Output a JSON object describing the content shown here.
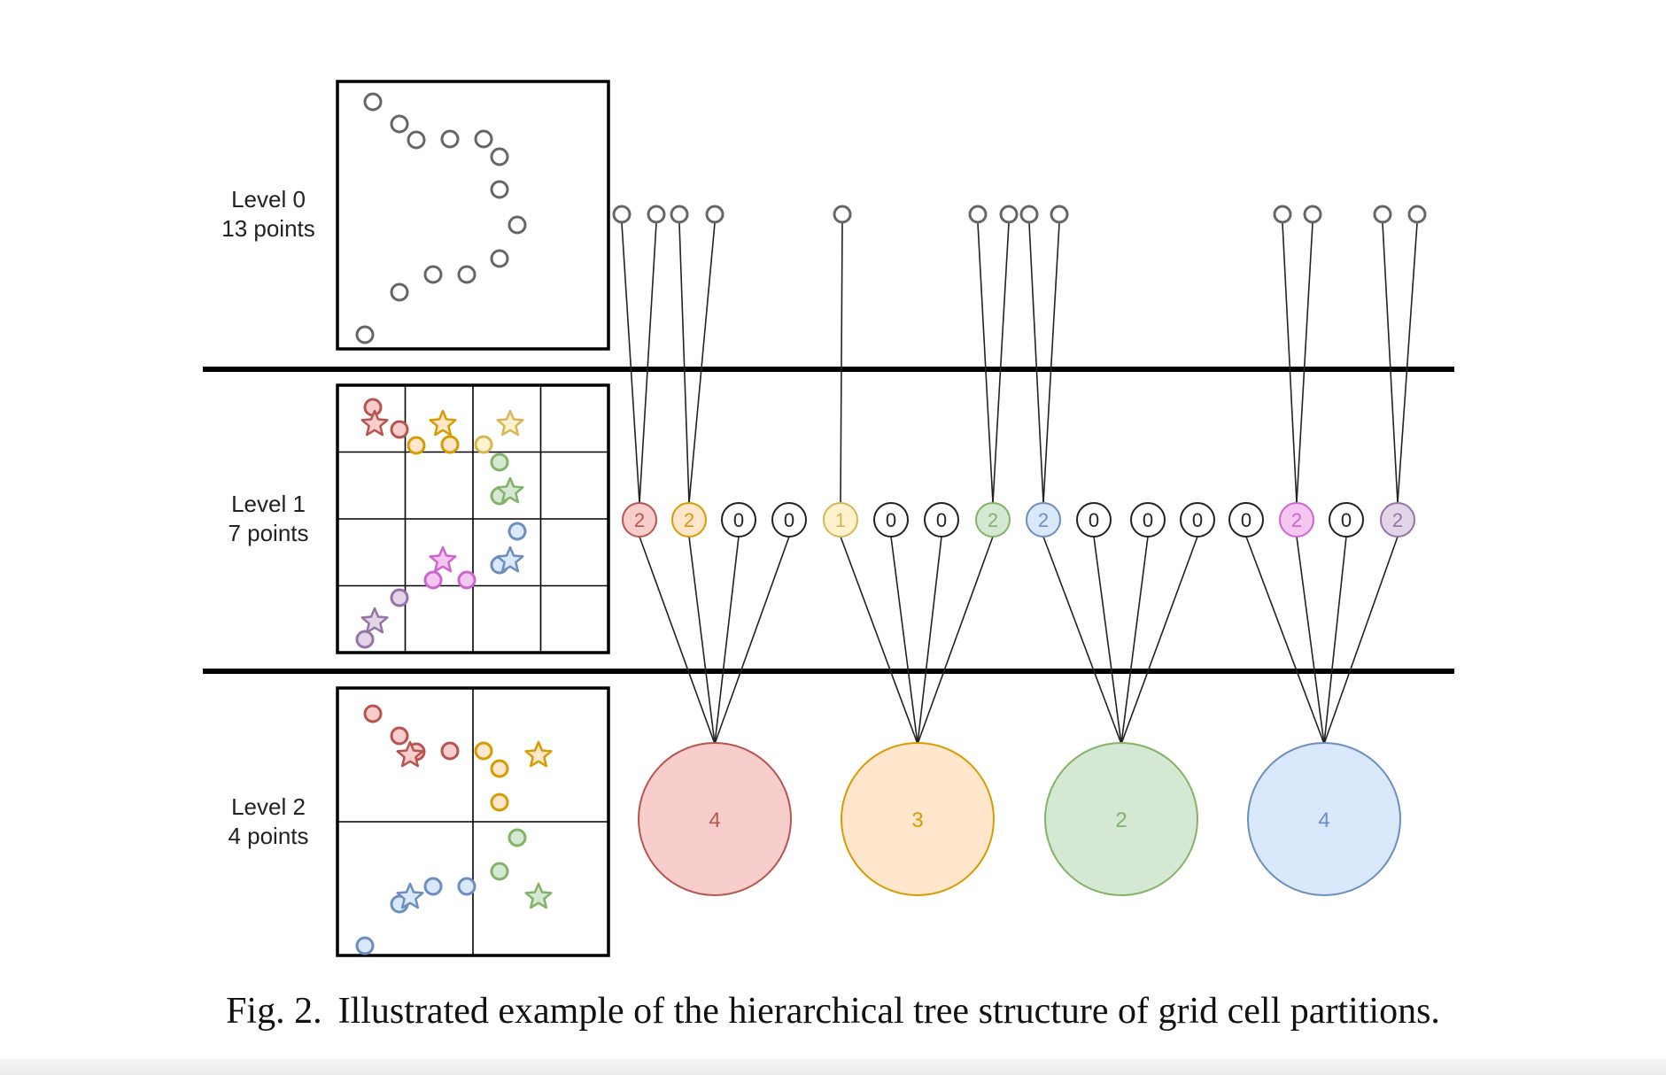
{
  "levels": [
    {
      "title": "Level 0",
      "points": "13 points"
    },
    {
      "title": "Level 1",
      "points": "7 points"
    },
    {
      "title": "Level 2",
      "points": "4 points"
    }
  ],
  "level1_nodes": [
    {
      "value": "2",
      "color": "red"
    },
    {
      "value": "2",
      "color": "orange"
    },
    {
      "value": "0",
      "color": "white"
    },
    {
      "value": "0",
      "color": "white"
    },
    {
      "value": "1",
      "color": "yellow"
    },
    {
      "value": "0",
      "color": "white"
    },
    {
      "value": "0",
      "color": "white"
    },
    {
      "value": "2",
      "color": "green"
    },
    {
      "value": "2",
      "color": "blue"
    },
    {
      "value": "0",
      "color": "white"
    },
    {
      "value": "0",
      "color": "white"
    },
    {
      "value": "0",
      "color": "white"
    },
    {
      "value": "0",
      "color": "white"
    },
    {
      "value": "2",
      "color": "pink"
    },
    {
      "value": "0",
      "color": "white"
    },
    {
      "value": "2",
      "color": "purple"
    }
  ],
  "level2_nodes": [
    {
      "value": "4",
      "color": "red"
    },
    {
      "value": "3",
      "color": "orange"
    },
    {
      "value": "2",
      "color": "green"
    },
    {
      "value": "4",
      "color": "blue"
    }
  ],
  "colors": {
    "red": {
      "fill": "#f8cecc",
      "stroke": "#b85450"
    },
    "orange": {
      "fill": "#ffe6cc",
      "stroke": "#d79b00"
    },
    "yellow": {
      "fill": "#fff2cc",
      "stroke": "#d6b656"
    },
    "green": {
      "fill": "#d5e8d4",
      "stroke": "#82b366"
    },
    "blue": {
      "fill": "#dae8fc",
      "stroke": "#6c8ebf"
    },
    "pink": {
      "fill": "#f5c6f0",
      "stroke": "#cc66cc"
    },
    "purple": {
      "fill": "#e1d5e7",
      "stroke": "#9673a6"
    },
    "white": {
      "fill": "#ffffff",
      "stroke": "#222222"
    },
    "gray": {
      "fill": "#ffffff",
      "stroke": "#666666"
    }
  },
  "caption": {
    "figure_number": "Fig. 2.",
    "text": "Illustrated example of the hierarchical tree structure of grid cell partitions."
  }
}
